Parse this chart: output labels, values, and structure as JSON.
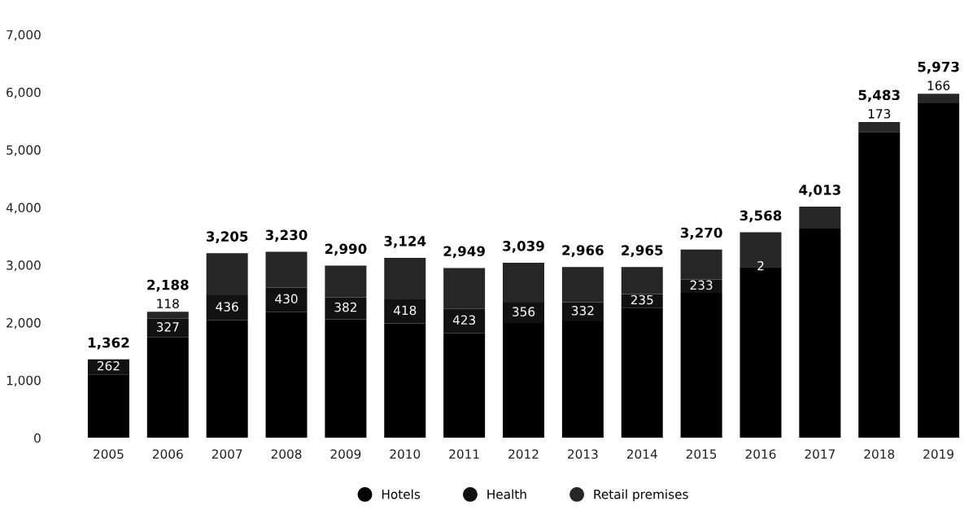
{
  "chart_data": {
    "type": "bar",
    "stacked": true,
    "categories": [
      "2005",
      "2006",
      "2007",
      "2008",
      "2009",
      "2010",
      "2011",
      "2012",
      "2013",
      "2014",
      "2015",
      "2016",
      "2017",
      "2018",
      "2019"
    ],
    "series": [
      {
        "name": "Hotels",
        "color": "#000000",
        "values": [
          1100,
          1743,
          2039,
          2180,
          2058,
          1986,
          1816,
          1993,
          2024,
          2260,
          2517,
          2966,
          3633,
          5310,
          5807
        ]
      },
      {
        "name": "Health",
        "color": "#111111",
        "values": [
          262,
          327,
          436,
          430,
          382,
          418,
          423,
          356,
          332,
          235,
          233,
          2,
          null,
          null,
          null
        ],
        "value_labels": [
          "262",
          "327",
          "436",
          "430",
          "382",
          "418",
          "423",
          "356",
          "332",
          "235",
          "233",
          "2",
          null,
          null,
          null
        ]
      },
      {
        "name": "Retail premises",
        "color": "#262626",
        "values": [
          null,
          118,
          730,
          620,
          550,
          720,
          710,
          690,
          610,
          470,
          520,
          600,
          380,
          173,
          166
        ],
        "value_labels": [
          null,
          "118",
          null,
          null,
          null,
          null,
          null,
          null,
          null,
          null,
          null,
          null,
          null,
          "173",
          "166"
        ]
      }
    ],
    "totals": [
      "1,362",
      "2,188",
      "3,205",
      "3,230",
      "2,990",
      "3,124",
      "2,949",
      "3,039",
      "2,966",
      "2,965",
      "3,270",
      "3,568",
      "4,013",
      "5,483",
      "5,973"
    ],
    "ylim": [
      0,
      7000
    ],
    "yticks": [
      {
        "value": 0,
        "label": "0"
      },
      {
        "value": 1000,
        "label": "1,000"
      },
      {
        "value": 2000,
        "label": "2,000"
      },
      {
        "value": 3000,
        "label": "3,000"
      },
      {
        "value": 4000,
        "label": "4,000"
      },
      {
        "value": 5000,
        "label": "5,000"
      },
      {
        "value": 6000,
        "label": "6,000"
      },
      {
        "value": 7000,
        "label": "7,000"
      }
    ],
    "grid": false,
    "legend": "bottom",
    "marker": "circle"
  }
}
